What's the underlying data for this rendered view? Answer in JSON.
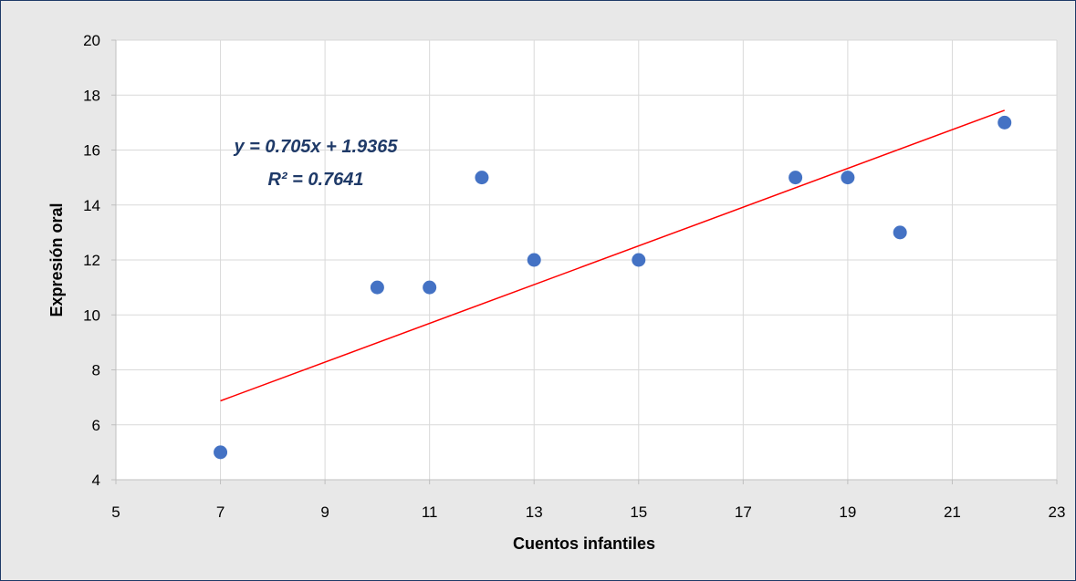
{
  "chart_data": {
    "type": "scatter",
    "xlabel": "Cuentos infantiles",
    "ylabel": "Expresión oral",
    "xlim": [
      5,
      23
    ],
    "ylim": [
      4,
      20
    ],
    "x_ticks": [
      5,
      7,
      9,
      11,
      13,
      15,
      17,
      19,
      21,
      23
    ],
    "y_ticks": [
      4,
      6,
      8,
      10,
      12,
      14,
      16,
      18,
      20
    ],
    "grid": true,
    "points": [
      {
        "x": 7,
        "y": 5
      },
      {
        "x": 10,
        "y": 11
      },
      {
        "x": 11,
        "y": 11
      },
      {
        "x": 12,
        "y": 15
      },
      {
        "x": 13,
        "y": 12
      },
      {
        "x": 15,
        "y": 12
      },
      {
        "x": 18,
        "y": 15
      },
      {
        "x": 19,
        "y": 15
      },
      {
        "x": 20,
        "y": 13
      },
      {
        "x": 22,
        "y": 17
      }
    ],
    "trendline": {
      "type": "linear",
      "slope": 0.705,
      "intercept": 1.9365,
      "x_range": [
        7,
        22
      ]
    },
    "annotations": {
      "equation": "y = 0.705x + 1.9365",
      "r_squared": "R² = 0.7641"
    },
    "colors": {
      "points": "#4472c4",
      "trendline": "#ff0000",
      "annotation": "#1f3a68",
      "grid": "#d9d9d9",
      "plot_bg": "#ffffff",
      "frame_bg": "#e8e8e8"
    }
  }
}
